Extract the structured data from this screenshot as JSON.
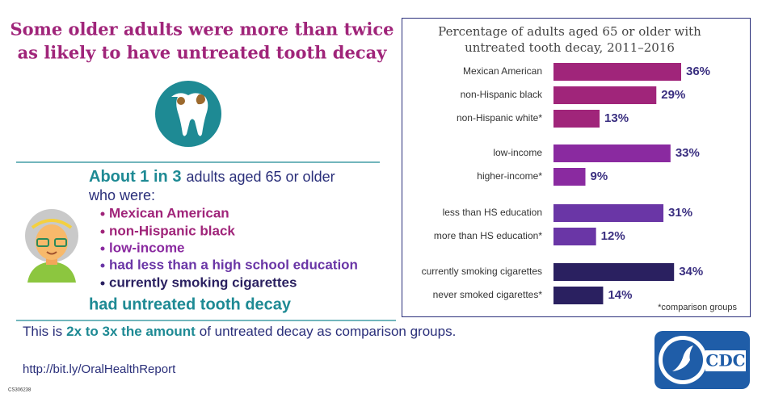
{
  "header": {
    "title_lines": [
      "Some older adults were more than twice",
      "as likely to have untreated tooth decay"
    ]
  },
  "summary": {
    "lead": "About 1 in 3",
    "lead_rest": "adults aged 65 or older",
    "who": "who were:",
    "bullets": [
      "Mexican American",
      "non-Hispanic black",
      "low-income",
      "had less than a high school education",
      "currently smoking cigarettes"
    ],
    "bullet_colors": [
      "#a0257a",
      "#a0257a",
      "#8a2aa0",
      "#6a36a6",
      "#2a2060"
    ],
    "conclusion": "had untreated tooth decay"
  },
  "comparison": {
    "before": "This is",
    "emphasis": "2x to 3x the amount",
    "after": "of untreated decay as comparison groups."
  },
  "link": "http://bit.ly/OralHealthReport",
  "code": "CS306238",
  "logo": "CDC",
  "chart_data": {
    "type": "bar",
    "orientation": "horizontal",
    "title_lines": [
      "Percentage of adults aged 65 or older with",
      "untreated tooth decay, 2011–2016"
    ],
    "categories": [
      "Mexican American",
      "non-Hispanic black",
      "non-Hispanic white*",
      "low-income",
      "higher-income*",
      "less than HS education",
      "more than HS education*",
      "currently smoking cigarettes",
      "never smoked cigarettes*"
    ],
    "values": [
      36,
      29,
      13,
      33,
      9,
      31,
      12,
      34,
      14
    ],
    "value_labels": [
      "36%",
      "29%",
      "13%",
      "33%",
      "9%",
      "31%",
      "12%",
      "34%",
      "14%"
    ],
    "colors": [
      "#a0257a",
      "#a0257a",
      "#a0257a",
      "#8a2aa0",
      "#8a2aa0",
      "#6a36a6",
      "#6a36a6",
      "#2a2060",
      "#2a2060"
    ],
    "footnote": "*comparison groups"
  }
}
